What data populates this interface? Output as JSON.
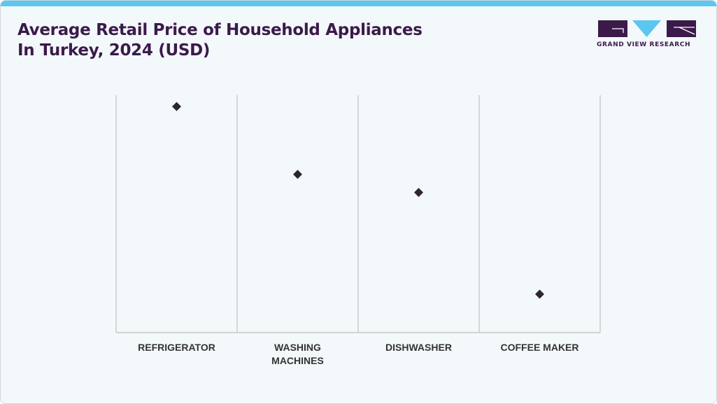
{
  "header": {
    "title_line1": "Average Retail Price of Household Appliances",
    "title_line2": "In Turkey, 2024 (USD)"
  },
  "brand": {
    "name": "GRAND VIEW RESEARCH",
    "colors": {
      "primary": "#3b1a4a",
      "accent": "#5bc7f0"
    }
  },
  "chart_data": {
    "type": "scatter",
    "title": "Average Retail Price of Household Appliances In Turkey, 2024 (USD)",
    "categories": [
      [
        "REFRIGERATOR"
      ],
      [
        "WASHING",
        "MACHINES"
      ],
      [
        "DISHWASHER"
      ],
      [
        "COFFEE MAKER"
      ]
    ],
    "values": [
      1000,
      700,
      620,
      170
    ],
    "ylim": [
      0,
      1050
    ],
    "xlabel": "",
    "ylabel": "",
    "grid": false,
    "marker": "diamond",
    "marker_color": "#2d2630",
    "axis_color": "#c8c8c8"
  }
}
